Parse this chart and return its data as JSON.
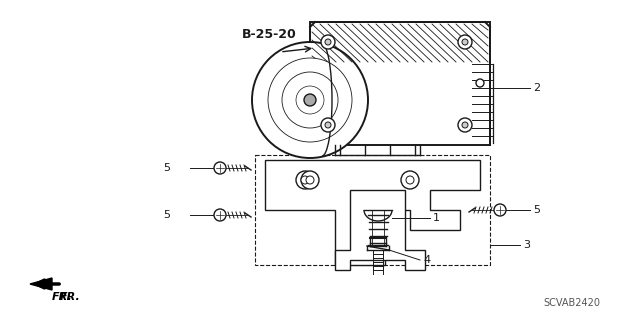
{
  "bg_color": "#ffffff",
  "line_color": "#1a1a1a",
  "figsize": [
    6.4,
    3.19
  ],
  "dpi": 100,
  "watermark": "SCVAB2420",
  "ref_label": "B-25-20",
  "fr_label": "FR."
}
